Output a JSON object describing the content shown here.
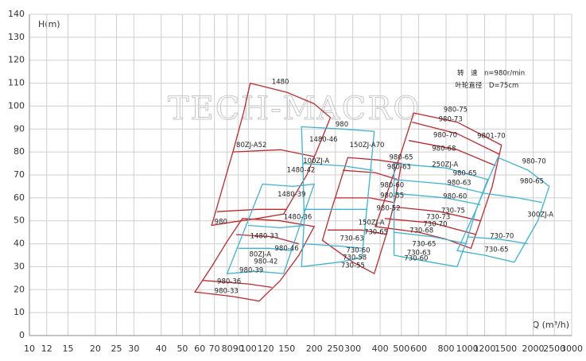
{
  "chart_data": {
    "type": "region",
    "watermark": "TECH-MACRO",
    "y_label": "H(m)",
    "x_label": "Q (m³/h)",
    "log_x": true,
    "grid": true,
    "xlim": [
      10,
      3000
    ],
    "ylim": [
      0,
      140
    ],
    "xticks": [
      10,
      12,
      15,
      20,
      25,
      30,
      40,
      50,
      60,
      70,
      80,
      90,
      100,
      120,
      150,
      200,
      250,
      300,
      400,
      500,
      600,
      800,
      1000,
      1200,
      1500,
      2000,
      2500,
      3000
    ],
    "yticks": [
      0,
      10,
      20,
      30,
      40,
      50,
      60,
      70,
      80,
      90,
      100,
      110,
      120,
      130,
      140
    ],
    "curves": [
      {
        "color": "#c0282d",
        "closed": true,
        "x": [
          102,
          150,
          200,
          237,
          215,
          185,
          160,
          145,
          110,
          85,
          68,
          75,
          85,
          95
        ],
        "y": [
          110,
          106,
          101,
          95,
          85,
          70,
          60,
          53,
          51,
          49.5,
          48,
          62,
          80,
          97
        ]
      },
      {
        "color": "#c0282d",
        "closed": false,
        "x": [
          85,
          140,
          200
        ],
        "y": [
          80,
          81,
          78
        ]
      },
      {
        "color": "#c0282d",
        "closed": false,
        "x": [
          72,
          110,
          150
        ],
        "y": [
          54,
          55,
          55
        ]
      },
      {
        "color": "#c0282d",
        "closed": true,
        "x": [
          94,
          140,
          200,
          170,
          140,
          112,
          85,
          57,
          68,
          80
        ],
        "y": [
          51,
          50,
          47.5,
          35,
          24,
          15,
          17,
          19,
          30,
          41
        ]
      },
      {
        "color": "#c0282d",
        "closed": false,
        "x": [
          88,
          130,
          170
        ],
        "y": [
          44,
          43,
          40
        ]
      },
      {
        "color": "#c0282d",
        "closed": false,
        "x": [
          62,
          100,
          128
        ],
        "y": [
          24,
          22.5,
          21
        ]
      },
      {
        "color": "#c0282d",
        "closed": true,
        "x": [
          285,
          390,
          500,
          470,
          430,
          376,
          300,
          218,
          240,
          265
        ],
        "y": [
          77.6,
          76.5,
          75,
          60,
          45,
          27,
          32,
          41.5,
          55,
          68
        ]
      },
      {
        "color": "#c0282d",
        "closed": false,
        "x": [
          270,
          380,
          480
        ],
        "y": [
          72,
          71,
          68
        ]
      },
      {
        "color": "#c0282d",
        "closed": false,
        "x": [
          250,
          360,
          460
        ],
        "y": [
          60,
          60,
          58
        ]
      },
      {
        "color": "#c0282d",
        "closed": false,
        "x": [
          230,
          330,
          430
        ],
        "y": [
          46,
          46,
          44
        ]
      },
      {
        "color": "#c0282d",
        "closed": true,
        "x": [
          570,
          900,
          1433,
          1300,
          1150,
          1040,
          800,
          600,
          380,
          430,
          500
        ],
        "y": [
          97,
          93,
          83,
          65,
          50,
          38,
          42,
          45,
          47.5,
          62,
          80
        ]
      },
      {
        "color": "#c0282d",
        "closed": false,
        "x": [
          560,
          900,
          1400
        ],
        "y": [
          93,
          88,
          79
        ]
      },
      {
        "color": "#c0282d",
        "closed": false,
        "x": [
          540,
          900,
          1350
        ],
        "y": [
          85,
          81,
          74
        ]
      },
      {
        "color": "#c0282d",
        "closed": false,
        "x": [
          470,
          750,
          1150
        ],
        "y": [
          56,
          54,
          50
        ]
      },
      {
        "color": "#c0282d",
        "closed": false,
        "x": [
          420,
          700,
          1100
        ],
        "y": [
          51,
          49,
          44
        ]
      },
      {
        "color": "#3cb4d2",
        "closed": true,
        "x": [
          116,
          160,
          200,
          175,
          145,
          110,
          80,
          95
        ],
        "y": [
          66,
          65,
          66,
          50,
          27,
          28,
          27,
          45
        ]
      },
      {
        "color": "#3cb4d2",
        "closed": false,
        "x": [
          100,
          140,
          180
        ],
        "y": [
          48,
          47,
          48
        ]
      },
      {
        "color": "#3cb4d2",
        "closed": false,
        "x": [
          90,
          125,
          160
        ],
        "y": [
          38,
          38,
          37
        ]
      },
      {
        "color": "#3cb4d2",
        "closed": true,
        "x": [
          175,
          270,
          376,
          360,
          345,
          330,
          260,
          175,
          180,
          178
        ],
        "y": [
          91,
          90,
          89,
          70,
          52,
          34,
          32,
          30,
          50,
          70
        ]
      },
      {
        "color": "#3cb4d2",
        "closed": false,
        "x": [
          176,
          270,
          370
        ],
        "y": [
          75,
          74,
          72
        ]
      },
      {
        "color": "#3cb4d2",
        "closed": false,
        "x": [
          178,
          260,
          350
        ],
        "y": [
          55,
          55,
          55
        ]
      },
      {
        "color": "#3cb4d2",
        "closed": false,
        "x": [
          178,
          260,
          335
        ],
        "y": [
          40,
          39,
          38
        ]
      },
      {
        "color": "#3cb4d2",
        "closed": true,
        "x": [
          463,
          800,
          1240,
          1100,
          1000,
          900,
          680,
          463,
          463
        ],
        "y": [
          75,
          73,
          68,
          55,
          42,
          30,
          32,
          35,
          55
        ]
      },
      {
        "color": "#3cb4d2",
        "closed": false,
        "x": [
          463,
          800,
          1200
        ],
        "y": [
          68,
          66,
          62
        ]
      },
      {
        "color": "#3cb4d2",
        "closed": false,
        "x": [
          463,
          800,
          1150
        ],
        "y": [
          62,
          60,
          57
        ]
      },
      {
        "color": "#3cb4d2",
        "closed": false,
        "x": [
          463,
          700,
          1000
        ],
        "y": [
          45,
          43,
          40
        ]
      },
      {
        "color": "#3cb4d2",
        "closed": true,
        "x": [
          1380,
          1900,
          2370,
          2100,
          1640,
          1200,
          900,
          1100,
          1250
        ],
        "y": [
          77.6,
          72,
          65,
          50,
          32,
          35,
          37,
          55,
          68
        ]
      },
      {
        "color": "#3cb4d2",
        "closed": false,
        "x": [
          1200,
          1700,
          2200
        ],
        "y": [
          62,
          60,
          58
        ]
      },
      {
        "color": "#3cb4d2",
        "closed": false,
        "x": [
          1000,
          1400,
          1900
        ],
        "y": [
          43,
          42,
          40
        ]
      }
    ],
    "annotations": [
      {
        "text": "1480",
        "x": 128,
        "y": 110.5
      },
      {
        "text": "80ZJ-A52",
        "x": 88,
        "y": 83
      },
      {
        "text": "1480-46",
        "x": 190,
        "y": 85.5
      },
      {
        "text": "980",
        "x": 250,
        "y": 92
      },
      {
        "text": "150ZJ-A70",
        "x": 290,
        "y": 83
      },
      {
        "text": "100ZJ-A",
        "x": 178,
        "y": 76
      },
      {
        "text": "1480-42",
        "x": 150,
        "y": 72
      },
      {
        "text": "1480-39",
        "x": 136,
        "y": 61.5
      },
      {
        "text": "1480-36",
        "x": 145,
        "y": 51.6
      },
      {
        "text": "980",
        "x": 70,
        "y": 49.5
      },
      {
        "text": "1480-33",
        "x": 102,
        "y": 43.3
      },
      {
        "text": "980-46",
        "x": 132,
        "y": 38
      },
      {
        "text": "80ZJ-A",
        "x": 101,
        "y": 35.3
      },
      {
        "text": "980-42",
        "x": 106,
        "y": 32.2
      },
      {
        "text": "980-39",
        "x": 91,
        "y": 28.4
      },
      {
        "text": "980-36",
        "x": 72,
        "y": 23.6
      },
      {
        "text": "980-33",
        "x": 70,
        "y": 19.4
      },
      {
        "text": "980-65",
        "x": 440,
        "y": 77.6
      },
      {
        "text": "980-63",
        "x": 430,
        "y": 73.5
      },
      {
        "text": "980-60",
        "x": 400,
        "y": 65.5
      },
      {
        "text": "980-55",
        "x": 400,
        "y": 61
      },
      {
        "text": "980-52",
        "x": 385,
        "y": 55.4
      },
      {
        "text": "150ZJ-A",
        "x": 318,
        "y": 49.2
      },
      {
        "text": "730-65",
        "x": 338,
        "y": 45
      },
      {
        "text": "730-63",
        "x": 262,
        "y": 42.3
      },
      {
        "text": "730-60",
        "x": 280,
        "y": 37
      },
      {
        "text": "730-58",
        "x": 270,
        "y": 34
      },
      {
        "text": "730-55",
        "x": 265,
        "y": 30.5
      },
      {
        "text": "980-75",
        "x": 780,
        "y": 98.4
      },
      {
        "text": "980-73",
        "x": 740,
        "y": 94.2
      },
      {
        "text": "980-70",
        "x": 700,
        "y": 87.3
      },
      {
        "text": "980-68",
        "x": 690,
        "y": 81.4
      },
      {
        "text": "9801-70",
        "x": 1110,
        "y": 87
      },
      {
        "text": "250ZJ-A",
        "x": 690,
        "y": 74.5
      },
      {
        "text": "980-65",
        "x": 860,
        "y": 70.7
      },
      {
        "text": "980-63",
        "x": 810,
        "y": 66.5
      },
      {
        "text": "980-60",
        "x": 775,
        "y": 60.6
      },
      {
        "text": "730-75",
        "x": 760,
        "y": 54.4
      },
      {
        "text": "730-73",
        "x": 650,
        "y": 51.6
      },
      {
        "text": "730-70",
        "x": 630,
        "y": 48.5
      },
      {
        "text": "730-68",
        "x": 545,
        "y": 45.7
      },
      {
        "text": "730-65",
        "x": 560,
        "y": 39.8
      },
      {
        "text": "730-63",
        "x": 530,
        "y": 36
      },
      {
        "text": "730-60",
        "x": 515,
        "y": 33.6
      },
      {
        "text": "980-70",
        "x": 1780,
        "y": 75.9
      },
      {
        "text": "980-65",
        "x": 1740,
        "y": 67.2
      },
      {
        "text": "300ZJ-A",
        "x": 1880,
        "y": 52.7
      },
      {
        "text": "730-70",
        "x": 1270,
        "y": 43.3
      },
      {
        "text": "730-65",
        "x": 1200,
        "y": 37.4
      },
      {
        "text": "转　速　n=980r/min",
        "x": 900,
        "y": 114.3
      },
      {
        "text": "叶轮直径　D=75cm",
        "x": 880,
        "y": 109
      }
    ]
  }
}
